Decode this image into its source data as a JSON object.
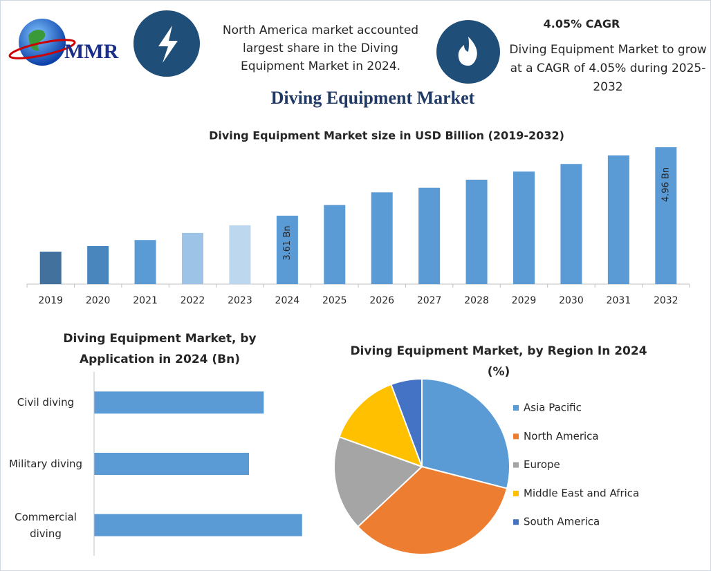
{
  "header": {
    "logo": "MMR",
    "left_text": "North America market accounted largest share in the Diving Equipment Market in 2024.",
    "cagr_title": "4.05% CAGR",
    "cagr_text": "Diving Equipment Market to grow at a CAGR of 4.05% during 2025-2032"
  },
  "title": "Diving Equipment Market",
  "chart_data": [
    {
      "type": "bar",
      "title": "Diving Equipment Market size in USD Billion (2019-2032)",
      "categories": [
        "2019",
        "2020",
        "2021",
        "2022",
        "2023",
        "2024",
        "2025",
        "2026",
        "2027",
        "2028",
        "2029",
        "2030",
        "2031",
        "2032"
      ],
      "values": [
        2.9,
        3.01,
        3.13,
        3.27,
        3.42,
        3.61,
        3.82,
        4.07,
        4.16,
        4.32,
        4.48,
        4.63,
        4.8,
        4.96
      ],
      "value_labels": [
        null,
        null,
        null,
        null,
        null,
        "3.61 Bn",
        null,
        null,
        null,
        null,
        null,
        null,
        null,
        "4.96 Bn"
      ],
      "colors": [
        "#41719c",
        "#4a86be",
        "#5b9bd5",
        "#9dc3e6",
        "#bdd7ee",
        "#5b9bd5",
        "#5b9bd5",
        "#5b9bd5",
        "#5b9bd5",
        "#5b9bd5",
        "#5b9bd5",
        "#5b9bd5",
        "#5b9bd5",
        "#5b9bd5"
      ],
      "ylim": [
        2.26,
        4.96
      ]
    },
    {
      "type": "bar",
      "orientation": "horizontal",
      "title": "Diving Equipment Market, by Application in 2024 (Bn)",
      "categories": [
        "Civil diving",
        "Military diving",
        "Commercial diving"
      ],
      "values": [
        1.15,
        1.05,
        1.41
      ],
      "color": "#5b9bd5",
      "xlim": [
        0,
        1.5
      ]
    },
    {
      "type": "pie",
      "title": "Diving Equipment Market, by Region In 2024 (%)",
      "categories": [
        "Asia Pacific",
        "North America",
        "Europe",
        "Middle East and Africa",
        "South America"
      ],
      "values": [
        29,
        34,
        17.5,
        13.8,
        5.7
      ],
      "colors": [
        "#5b9bd5",
        "#ed7d31",
        "#a5a5a5",
        "#ffc000",
        "#4472c4"
      ],
      "legend": "right"
    }
  ]
}
